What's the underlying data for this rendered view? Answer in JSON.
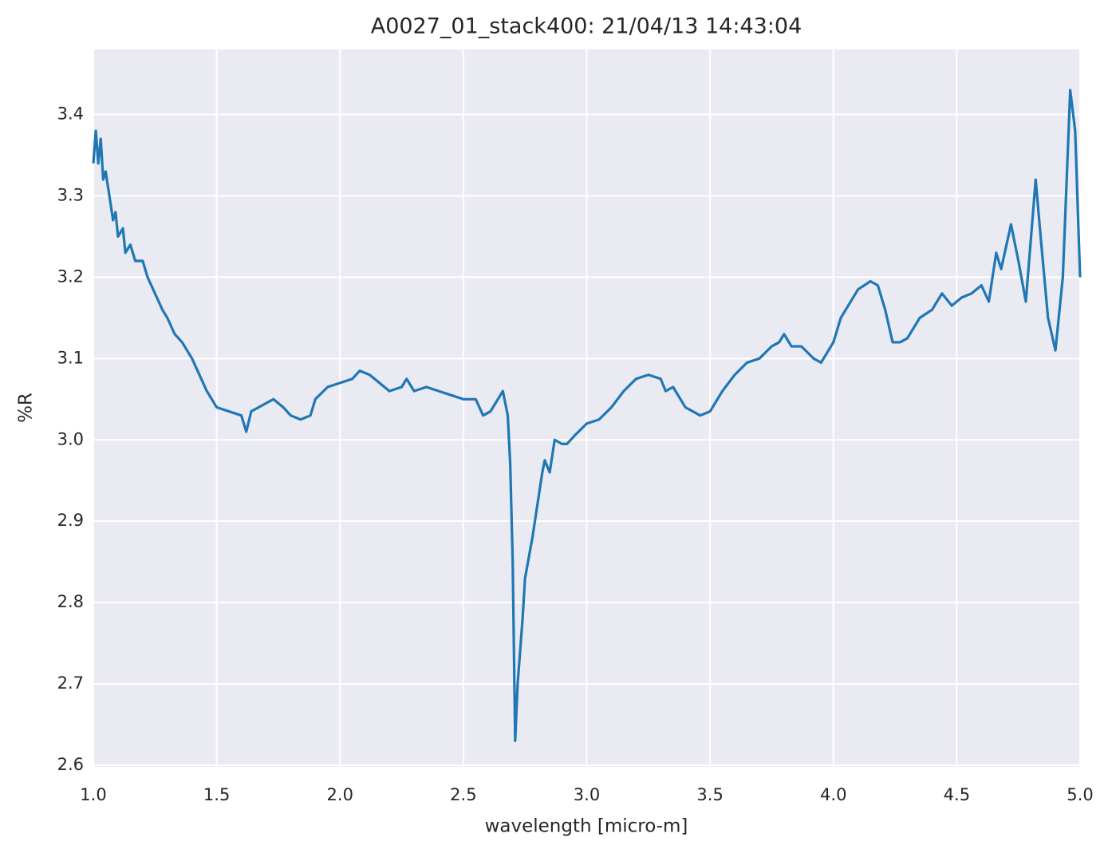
{
  "chart_data": {
    "type": "line",
    "title": "A0027_01_stack400:  21/04/13 14:43:04",
    "xlabel": "wavelength [micro-m]",
    "ylabel": "%R",
    "background": "#eaeaf2",
    "grid": true,
    "xlim": [
      1,
      5
    ],
    "ylim": [
      2.598,
      3.48
    ],
    "xticks": [
      {
        "value": 1,
        "label": "1.0"
      },
      1.5,
      {
        "value": 2,
        "label": "2.0"
      },
      2.5,
      {
        "value": 3,
        "label": "3.0"
      },
      3.5,
      {
        "value": 4,
        "label": "4.0"
      },
      4.5,
      {
        "value": 5,
        "label": "5.0"
      }
    ],
    "yticks": [
      2.6,
      2.7,
      2.8,
      2.9,
      {
        "value": 3,
        "label": "3.0"
      },
      3.1,
      3.2,
      3.3,
      3.4
    ],
    "x": [
      1.0,
      1.01,
      1.02,
      1.03,
      1.04,
      1.05,
      1.06,
      1.07,
      1.08,
      1.09,
      1.1,
      1.12,
      1.13,
      1.15,
      1.17,
      1.2,
      1.22,
      1.25,
      1.28,
      1.3,
      1.33,
      1.36,
      1.4,
      1.43,
      1.46,
      1.5,
      1.55,
      1.6,
      1.62,
      1.64,
      1.7,
      1.73,
      1.77,
      1.8,
      1.84,
      1.88,
      1.9,
      1.95,
      2.0,
      2.05,
      2.08,
      2.12,
      2.16,
      2.2,
      2.25,
      2.27,
      2.3,
      2.35,
      2.4,
      2.45,
      2.5,
      2.55,
      2.58,
      2.61,
      2.64,
      2.66,
      2.68,
      2.69,
      2.7,
      2.71,
      2.72,
      2.74,
      2.75,
      2.78,
      2.8,
      2.82,
      2.83,
      2.85,
      2.87,
      2.9,
      2.92,
      2.95,
      3.0,
      3.05,
      3.1,
      3.15,
      3.2,
      3.25,
      3.3,
      3.32,
      3.35,
      3.4,
      3.43,
      3.46,
      3.5,
      3.55,
      3.6,
      3.65,
      3.7,
      3.75,
      3.78,
      3.8,
      3.83,
      3.87,
      3.92,
      3.95,
      4.0,
      4.03,
      4.06,
      4.1,
      4.15,
      4.18,
      4.21,
      4.24,
      4.27,
      4.3,
      4.35,
      4.4,
      4.44,
      4.48,
      4.52,
      4.56,
      4.6,
      4.63,
      4.66,
      4.68,
      4.72,
      4.75,
      4.78,
      4.82,
      4.84,
      4.87,
      4.9,
      4.93,
      4.96,
      4.98,
      5.0
    ],
    "series": [
      {
        "color": "#1f77b4",
        "values": [
          3.34,
          3.38,
          3.34,
          3.37,
          3.32,
          3.33,
          3.31,
          3.29,
          3.27,
          3.28,
          3.25,
          3.26,
          3.23,
          3.24,
          3.22,
          3.22,
          3.2,
          3.18,
          3.16,
          3.15,
          3.13,
          3.12,
          3.1,
          3.08,
          3.06,
          3.04,
          3.035,
          3.03,
          3.01,
          3.035,
          3.045,
          3.05,
          3.04,
          3.03,
          3.025,
          3.03,
          3.05,
          3.065,
          3.07,
          3.075,
          3.085,
          3.08,
          3.07,
          3.06,
          3.065,
          3.075,
          3.06,
          3.065,
          3.06,
          3.055,
          3.05,
          3.05,
          3.03,
          3.035,
          3.05,
          3.06,
          3.03,
          2.97,
          2.85,
          2.63,
          2.7,
          2.78,
          2.83,
          2.88,
          2.92,
          2.96,
          2.975,
          2.96,
          3.0,
          2.995,
          2.995,
          3.005,
          3.02,
          3.025,
          3.04,
          3.06,
          3.075,
          3.08,
          3.075,
          3.06,
          3.065,
          3.04,
          3.035,
          3.03,
          3.035,
          3.06,
          3.08,
          3.095,
          3.1,
          3.115,
          3.12,
          3.13,
          3.115,
          3.115,
          3.1,
          3.095,
          3.12,
          3.15,
          3.165,
          3.185,
          3.195,
          3.19,
          3.16,
          3.12,
          3.12,
          3.125,
          3.15,
          3.16,
          3.18,
          3.165,
          3.175,
          3.18,
          3.19,
          3.17,
          3.23,
          3.21,
          3.265,
          3.22,
          3.17,
          3.32,
          3.25,
          3.15,
          3.11,
          3.2,
          3.43,
          3.38,
          3.2
        ]
      }
    ]
  }
}
